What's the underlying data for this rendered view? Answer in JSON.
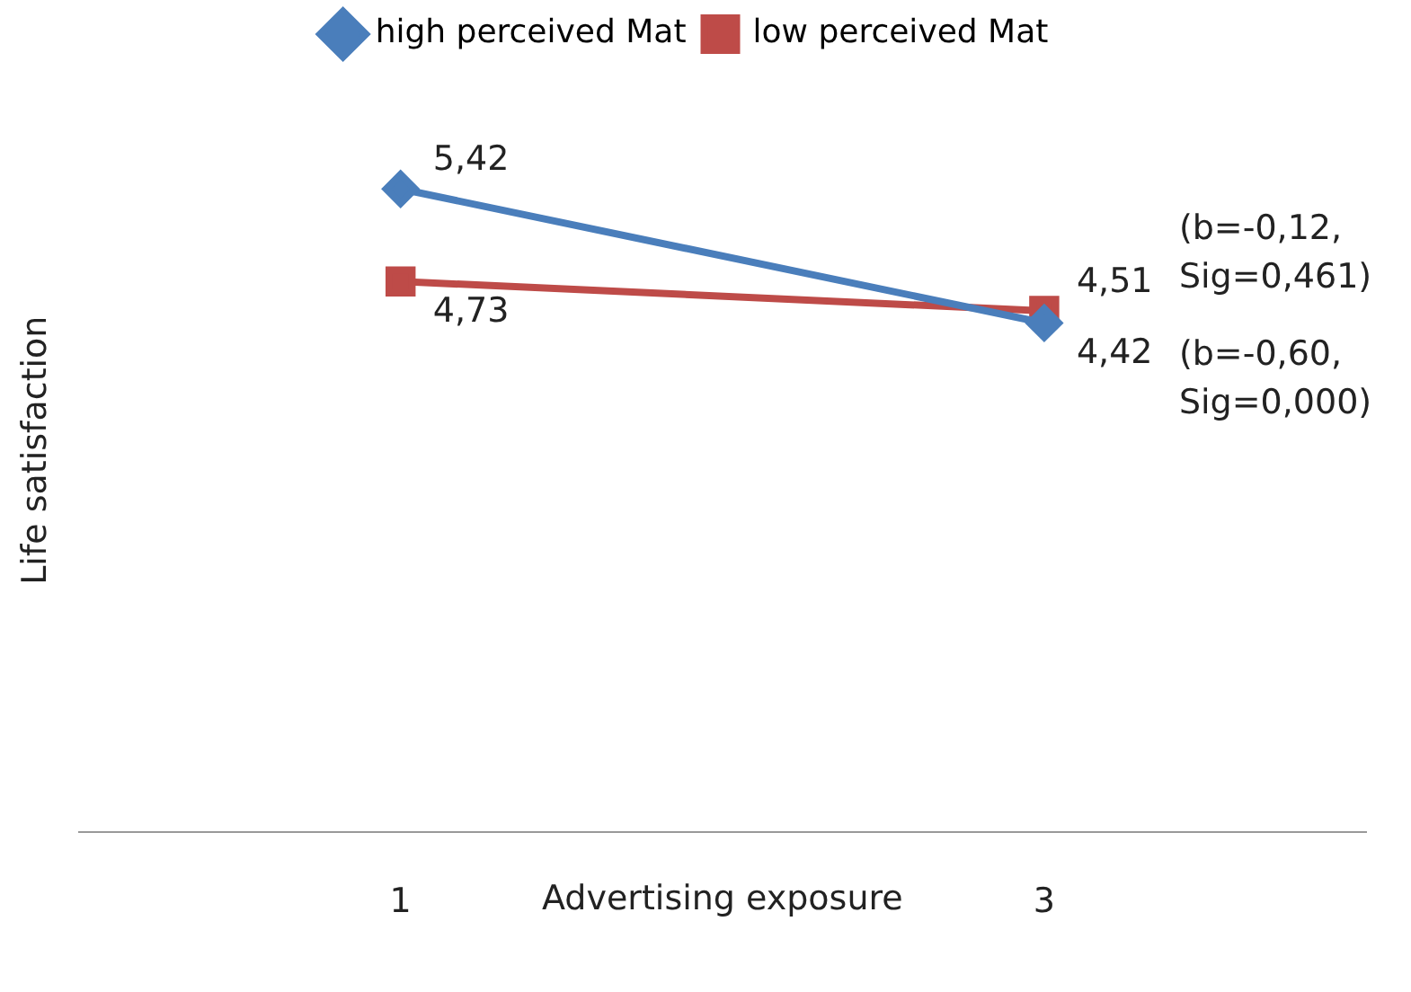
{
  "chart_data": {
    "type": "line",
    "xlabel": "Advertising exposure",
    "ylabel": "Life satisfaction",
    "categories": [
      "1",
      "3"
    ],
    "tick_labels": "x",
    "grid": false,
    "legend": "top",
    "line_style": "solid",
    "series": [
      {
        "name": "high perceived Mat",
        "color": "#4a7ebb",
        "marker": "diamond",
        "values": [
          5.42,
          4.42
        ],
        "value_labels": [
          "5,42",
          "4,42"
        ]
      },
      {
        "name": "low perceived Mat",
        "color": "#be4b48",
        "marker": "square",
        "values": [
          4.73,
          4.51
        ],
        "value_labels": [
          "4,73",
          "4,51"
        ]
      }
    ],
    "annotations": [
      "(b=-0,12, Sig=0,461)",
      "(b=-0,60, Sig=0,000)"
    ]
  }
}
